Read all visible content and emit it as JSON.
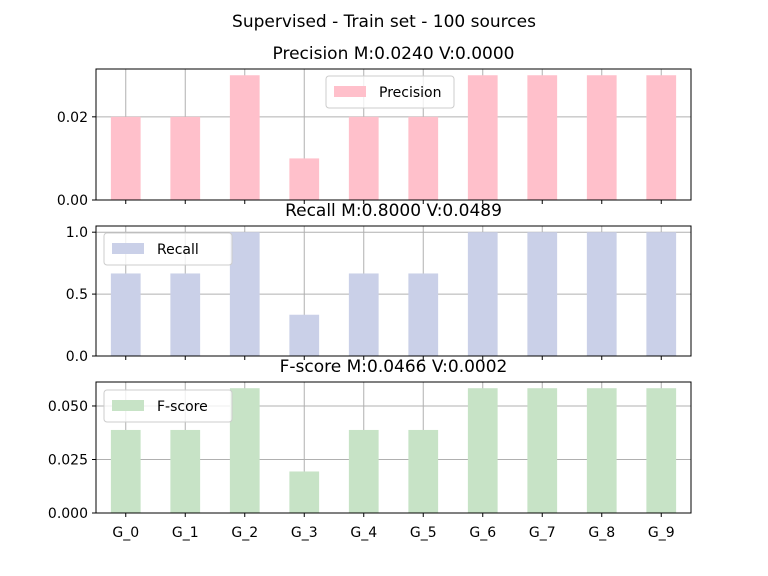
{
  "suptitle": "Supervised - Train set - 100 sources",
  "chart_data": [
    {
      "type": "bar",
      "title": "Precision M:0.0240 V:0.0000",
      "categories": [
        "G_0",
        "G_1",
        "G_2",
        "G_3",
        "G_4",
        "G_5",
        "G_6",
        "G_7",
        "G_8",
        "G_9"
      ],
      "series": [
        {
          "name": "Precision",
          "values": [
            0.02,
            0.02,
            0.03,
            0.01,
            0.02,
            0.02,
            0.03,
            0.03,
            0.03,
            0.03
          ]
        }
      ],
      "ylim": [
        0,
        0.0315
      ],
      "yticks": [
        0.0,
        0.02
      ],
      "ytick_labels": [
        "0.00",
        "0.02"
      ],
      "show_xticklabels": false,
      "grid": true,
      "legend": "top-center",
      "color": "#ffc0cb"
    },
    {
      "type": "bar",
      "title": "Recall M:0.8000 V:0.0489",
      "categories": [
        "G_0",
        "G_1",
        "G_2",
        "G_3",
        "G_4",
        "G_5",
        "G_6",
        "G_7",
        "G_8",
        "G_9"
      ],
      "series": [
        {
          "name": "Recall",
          "values": [
            0.6667,
            0.6667,
            1.0,
            0.3333,
            0.6667,
            0.6667,
            1.0,
            1.0,
            1.0,
            1.0
          ]
        }
      ],
      "ylim": [
        0,
        1.05
      ],
      "yticks": [
        0.0,
        0.5,
        1.0
      ],
      "ytick_labels": [
        "0.0",
        "0.5",
        "1.0"
      ],
      "show_xticklabels": false,
      "grid": true,
      "legend": "top-left",
      "color": "#cad0e8"
    },
    {
      "type": "bar",
      "title": "F-score M:0.0466 V:0.0002",
      "categories": [
        "G_0",
        "G_1",
        "G_2",
        "G_3",
        "G_4",
        "G_5",
        "G_6",
        "G_7",
        "G_8",
        "G_9"
      ],
      "series": [
        {
          "name": "F-score",
          "values": [
            0.0388,
            0.0388,
            0.0583,
            0.0194,
            0.0388,
            0.0388,
            0.0583,
            0.0583,
            0.0583,
            0.0583
          ]
        }
      ],
      "ylim": [
        0,
        0.0612
      ],
      "yticks": [
        0.0,
        0.025,
        0.05
      ],
      "ytick_labels": [
        "0.000",
        "0.025",
        "0.050"
      ],
      "show_xticklabels": true,
      "grid": true,
      "legend": "top-left",
      "color": "#c7e3c6"
    }
  ]
}
